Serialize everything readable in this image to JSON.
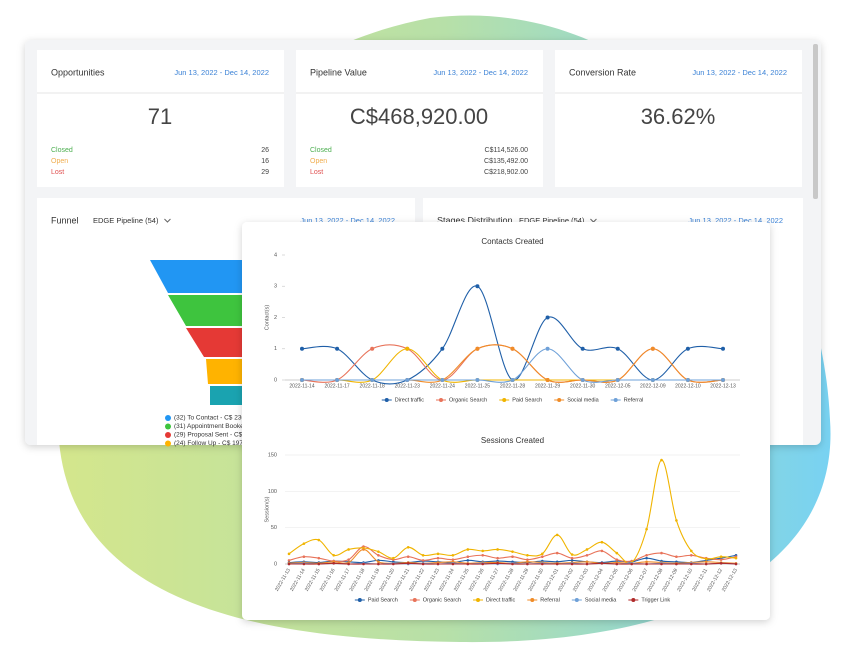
{
  "cards": [
    {
      "title": "Opportunities",
      "date": "Jun 13, 2022 - Dec 14, 2022",
      "value": "71",
      "rows": [
        {
          "label": "Closed",
          "value": "26"
        },
        {
          "label": "Open",
          "value": "16"
        },
        {
          "label": "Lost",
          "value": "29"
        }
      ]
    },
    {
      "title": "Pipeline Value",
      "date": "Jun 13, 2022 - Dec 14, 2022",
      "value": "C$468,920.00",
      "rows": [
        {
          "label": "Closed",
          "value": "C$114,526.00"
        },
        {
          "label": "Open",
          "value": "C$135,492.00"
        },
        {
          "label": "Lost",
          "value": "C$218,902.00"
        }
      ]
    },
    {
      "title": "Conversion Rate",
      "date": "Jun 13, 2022 - Dec 14, 2022",
      "value": "36.62%",
      "rows": []
    }
  ],
  "panels": [
    {
      "title": "Funnel",
      "pipeline": "EDGE Pipeline (54)",
      "date": "Jun 13, 2022 - Dec 14, 2022",
      "legend": [
        {
          "label": "(32) To Contact - C$ 230",
          "color": "#2196f3"
        },
        {
          "label": "(31) Appointment Booke",
          "color": "#3ec43e"
        },
        {
          "label": "(29) Proposal Sent - C$",
          "color": "#e53935"
        },
        {
          "label": "(24) Follow Up - C$ 197",
          "color": "#ffb300"
        }
      ]
    },
    {
      "title": "Stages Distribution",
      "pipeline": "EDGE Pipeline (54)",
      "date": "Jun 13, 2022 - Dec 14, 2022"
    }
  ],
  "chart_data": [
    {
      "type": "line",
      "title": "Contacts Created",
      "ylabel": "Contact(s)",
      "categories": [
        "2022-11-14",
        "2022-11-17",
        "2022-11-18",
        "2022-11-23",
        "2022-11-24",
        "2022-11-25",
        "2022-11-28",
        "2022-11-29",
        "2022-11-30",
        "2022-12-05",
        "2022-12-09",
        "2022-12-10",
        "2022-12-13"
      ],
      "ylim": [
        0,
        4
      ],
      "yticks": [
        0,
        1,
        2,
        3,
        4
      ],
      "grid": false,
      "series": [
        {
          "name": "Direct traffic",
          "color": "#1f5fa8",
          "values": [
            1,
            1,
            0,
            0,
            1,
            3,
            0,
            2,
            1,
            1,
            0,
            1,
            1
          ]
        },
        {
          "name": "Organic Search",
          "color": "#e8735a",
          "values": [
            0,
            0,
            1,
            1,
            0,
            1,
            1,
            0,
            0,
            0,
            1,
            0,
            0
          ]
        },
        {
          "name": "Paid Search",
          "color": "#f0b400",
          "values": [
            0,
            0,
            0,
            1,
            0,
            0,
            0,
            0,
            0,
            0,
            0,
            0,
            0
          ]
        },
        {
          "name": "Social media",
          "color": "#f08c28",
          "values": [
            0,
            0,
            0,
            0,
            0,
            1,
            1,
            0,
            0,
            0,
            1,
            0,
            0
          ]
        },
        {
          "name": "Referral",
          "color": "#6ea0d8",
          "values": [
            0,
            0,
            0,
            0,
            0,
            0,
            0,
            1,
            0,
            0,
            0,
            0,
            0
          ]
        }
      ]
    },
    {
      "type": "line",
      "title": "Sessions Created",
      "ylabel": "Session(s)",
      "categories": [
        "2022-11-13",
        "2022-11-14",
        "2022-11-15",
        "2022-11-16",
        "2022-11-17",
        "2022-11-18",
        "2022-11-19",
        "2022-11-20",
        "2022-11-21",
        "2022-11-22",
        "2022-11-23",
        "2022-11-24",
        "2022-11-25",
        "2022-11-26",
        "2022-11-27",
        "2022-11-28",
        "2022-11-29",
        "2022-11-30",
        "2022-12-01",
        "2022-12-02",
        "2022-12-03",
        "2022-12-04",
        "2022-12-05",
        "2022-12-06",
        "2022-12-07",
        "2022-12-08",
        "2022-12-09",
        "2022-12-10",
        "2022-12-11",
        "2022-12-12",
        "2022-12-13"
      ],
      "ylim": [
        0,
        150
      ],
      "yticks": [
        0,
        50,
        100,
        150
      ],
      "grid": true,
      "series": [
        {
          "name": "Paid Search",
          "color": "#1f5fa8",
          "values": [
            2,
            3,
            2,
            4,
            3,
            2,
            5,
            3,
            2,
            4,
            3,
            2,
            5,
            3,
            4,
            3,
            2,
            4,
            3,
            5,
            3,
            2,
            4,
            3,
            8,
            4,
            3,
            2,
            5,
            8,
            12
          ]
        },
        {
          "name": "Organic Search",
          "color": "#e8735a",
          "values": [
            5,
            10,
            8,
            4,
            6,
            24,
            12,
            6,
            10,
            5,
            8,
            6,
            10,
            12,
            8,
            10,
            6,
            10,
            15,
            8,
            12,
            18,
            6,
            4,
            12,
            15,
            10,
            12,
            8,
            6,
            10
          ]
        },
        {
          "name": "Direct traffic",
          "color": "#f0b400",
          "values": [
            14,
            28,
            33,
            12,
            20,
            22,
            17,
            8,
            23,
            12,
            14,
            12,
            20,
            18,
            20,
            17,
            12,
            14,
            40,
            13,
            20,
            30,
            15,
            2,
            48,
            143,
            60,
            18,
            7,
            10,
            8
          ]
        },
        {
          "name": "Referral",
          "color": "#f08c28",
          "values": [
            1,
            2,
            1,
            3,
            2,
            20,
            3,
            1,
            2,
            1,
            2,
            3,
            1,
            2,
            2,
            1,
            3,
            2,
            1,
            2,
            3,
            1,
            2,
            1,
            3,
            2,
            1,
            2,
            3,
            2,
            1
          ]
        },
        {
          "name": "Social media",
          "color": "#6ea0d8",
          "values": [
            0,
            1,
            0,
            1,
            0,
            1,
            0,
            1,
            0,
            1,
            0,
            1,
            0,
            1,
            0,
            1,
            0,
            1,
            0,
            1,
            0,
            1,
            0,
            1,
            0,
            1,
            0,
            1,
            0,
            1,
            0
          ]
        },
        {
          "name": "Trigger Link",
          "color": "#b02a2a",
          "values": [
            0,
            0,
            0,
            1,
            0,
            0,
            0,
            0,
            1,
            0,
            0,
            0,
            0,
            0,
            1,
            0,
            0,
            0,
            0,
            0,
            0,
            1,
            0,
            0,
            0,
            0,
            0,
            0,
            0,
            1,
            0
          ]
        }
      ]
    }
  ]
}
